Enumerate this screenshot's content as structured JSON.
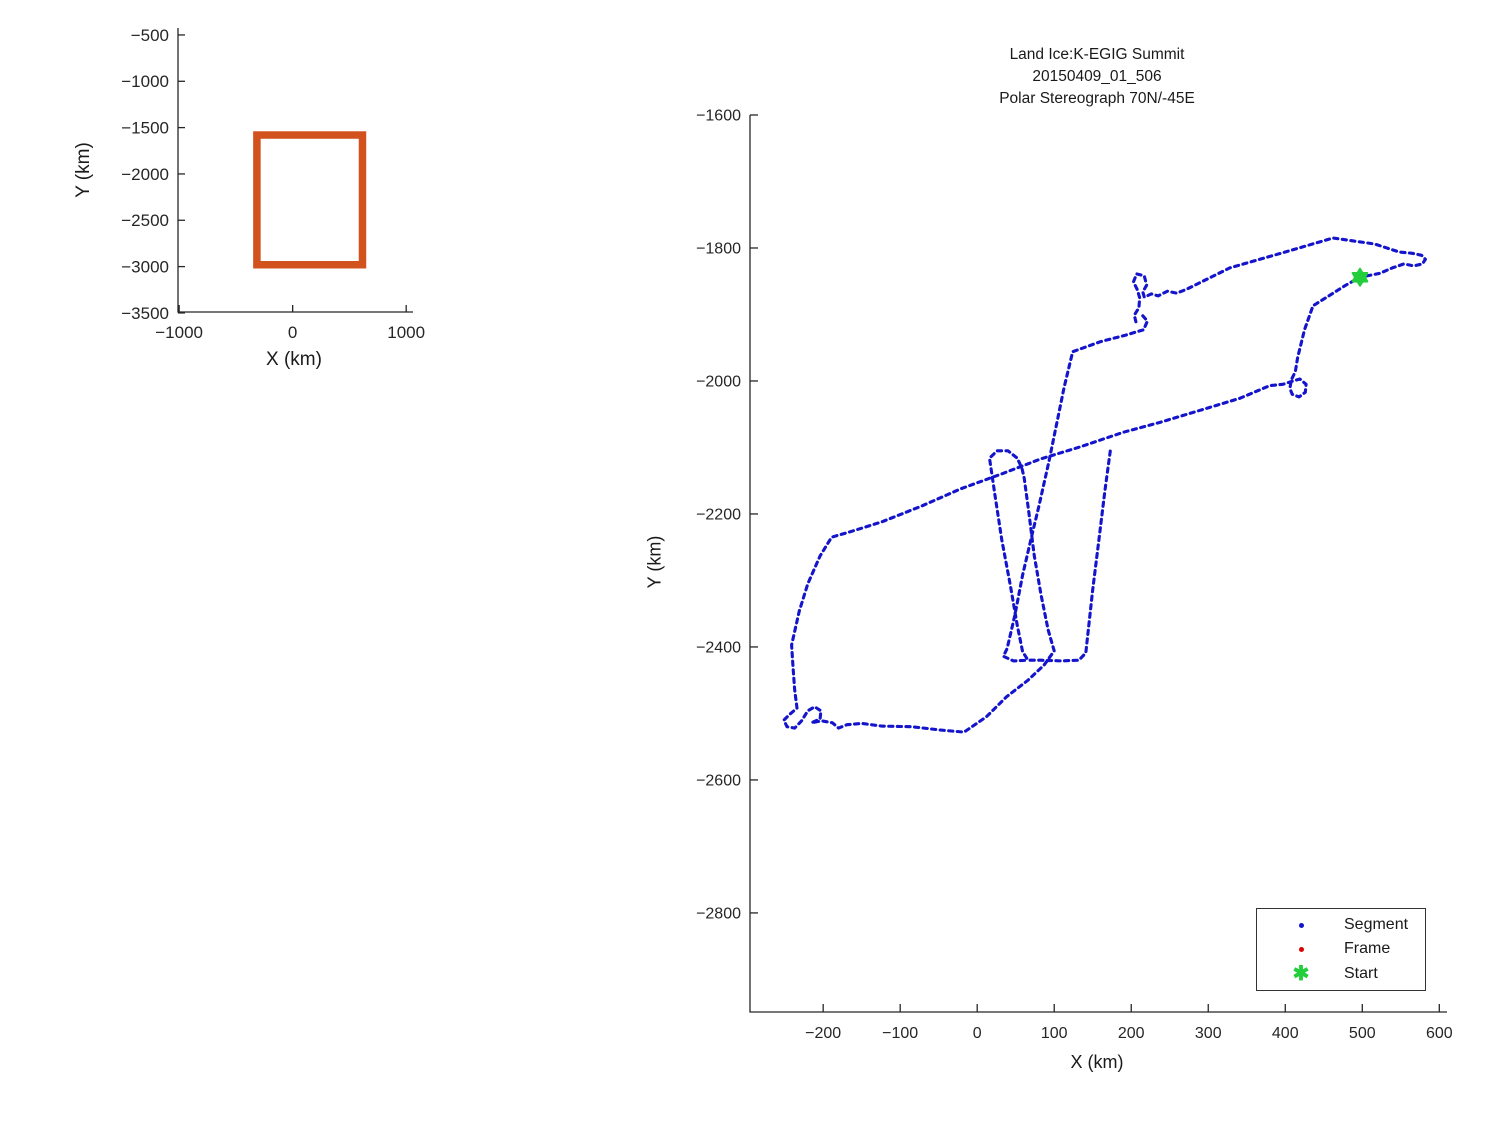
{
  "figure": {
    "background": "#ffffff",
    "axis_color": "#262626"
  },
  "legend": {
    "items": [
      {
        "label": "Segment",
        "marker": "dot",
        "color": "#1414CC"
      },
      {
        "label": "Frame",
        "marker": "dot",
        "color": "#DD0000"
      },
      {
        "label": "Start",
        "marker": "hexagram",
        "color": "#22CE3C"
      }
    ]
  },
  "chart_data": [
    {
      "type": "line",
      "role": "overview-map",
      "title": [],
      "xlabel": "X (km)",
      "ylabel": "Y (km)",
      "x_ticks": [
        -1000,
        0,
        1000
      ],
      "y_ticks": [
        -500,
        -1000,
        -1500,
        -2000,
        -2500,
        -3000,
        -3500
      ],
      "x_range": [
        -1010,
        1060
      ],
      "y_range": [
        -425,
        -3490
      ],
      "grid": false,
      "bbox_rect": {
        "x0": -315,
        "x1": 615,
        "y0": -1580,
        "y1": -2980,
        "color": "#D2521E",
        "line_width": 7.5
      }
    },
    {
      "type": "line",
      "role": "flight-track",
      "title": [
        "Land Ice:K-EGIG Summit",
        "20150409_01_506",
        "Polar Stereograph 70N/-45E"
      ],
      "xlabel": "X (km)",
      "ylabel": "Y (km)",
      "x_ticks": [
        -200,
        -100,
        0,
        100,
        200,
        300,
        400,
        500,
        600
      ],
      "y_ticks": [
        -1600,
        -1800,
        -2000,
        -2200,
        -2400,
        -2600,
        -2800
      ],
      "x_range": [
        -295,
        610
      ],
      "y_range": [
        -1600,
        -2949
      ],
      "grid": false,
      "track_color": "#1414CC",
      "line_style": "dotted",
      "series": [
        {
          "name": "segment-track-main",
          "points": [
            [
              206,
              -1911
            ],
            [
              204,
              -1901
            ],
            [
              210,
              -1890
            ],
            [
              211,
              -1875
            ],
            [
              208,
              -1863
            ],
            [
              203,
              -1851
            ],
            [
              207,
              -1839
            ],
            [
              217,
              -1842
            ],
            [
              220,
              -1856
            ],
            [
              215,
              -1866
            ],
            [
              217,
              -1874
            ],
            [
              226,
              -1869
            ],
            [
              235,
              -1872
            ],
            [
              247,
              -1865
            ],
            [
              259,
              -1868
            ],
            [
              272,
              -1862
            ],
            [
              328,
              -1830
            ],
            [
              400,
              -1806
            ],
            [
              462,
              -1785
            ],
            [
              516,
              -1794
            ],
            [
              548,
              -1806
            ],
            [
              565,
              -1808
            ],
            [
              577,
              -1811
            ],
            [
              582,
              -1817
            ],
            [
              578,
              -1824
            ],
            [
              567,
              -1827
            ],
            [
              554,
              -1824
            ],
            [
              539,
              -1830
            ],
            [
              523,
              -1838
            ],
            [
              497,
              -1844
            ],
            [
              477,
              -1857
            ],
            [
              458,
              -1871
            ],
            [
              436,
              -1887
            ],
            [
              425,
              -1923
            ],
            [
              416,
              -1965
            ],
            [
              413,
              -1986
            ],
            [
              408,
              -1998
            ],
            [
              406,
              -2011
            ],
            [
              409,
              -2020
            ],
            [
              418,
              -2024
            ],
            [
              426,
              -2017
            ],
            [
              427,
              -2005
            ],
            [
              419,
              -1997
            ],
            [
              410,
              -2000
            ],
            [
              397,
              -2005
            ],
            [
              380,
              -2007
            ],
            [
              341,
              -2026
            ],
            [
              290,
              -2044
            ],
            [
              238,
              -2062
            ],
            [
              190,
              -2077
            ],
            [
              134,
              -2099
            ],
            [
              83,
              -2117
            ],
            [
              31,
              -2140
            ],
            [
              -21,
              -2162
            ],
            [
              -72,
              -2188
            ],
            [
              -124,
              -2212
            ],
            [
              -163,
              -2226
            ],
            [
              -189,
              -2235
            ],
            [
              -204,
              -2263
            ],
            [
              -220,
              -2305
            ],
            [
              -231,
              -2346
            ],
            [
              -241,
              -2397
            ],
            [
              -239,
              -2432
            ],
            [
              -237,
              -2465
            ],
            [
              -234,
              -2492
            ],
            [
              -243,
              -2501
            ],
            [
              -251,
              -2510
            ],
            [
              -247,
              -2520
            ],
            [
              -237,
              -2522
            ],
            [
              -228,
              -2511
            ],
            [
              -220,
              -2496
            ],
            [
              -211,
              -2490
            ],
            [
              -203,
              -2496
            ],
            [
              -204,
              -2508
            ],
            [
              -215,
              -2514
            ],
            [
              -202,
              -2511
            ],
            [
              -188,
              -2514
            ],
            [
              -180,
              -2522
            ],
            [
              -169,
              -2517
            ],
            [
              -150,
              -2515
            ],
            [
              -124,
              -2519
            ],
            [
              -85,
              -2520
            ],
            [
              -47,
              -2525
            ],
            [
              -17,
              -2528
            ],
            [
              12,
              -2505
            ],
            [
              38,
              -2475
            ],
            [
              66,
              -2450
            ],
            [
              87,
              -2427
            ],
            [
              100,
              -2406
            ],
            [
              92,
              -2374
            ],
            [
              83,
              -2322
            ],
            [
              74,
              -2262
            ],
            [
              67,
              -2197
            ],
            [
              61,
              -2146
            ],
            [
              58,
              -2131
            ],
            [
              52,
              -2116
            ],
            [
              40,
              -2105
            ],
            [
              26,
              -2105
            ],
            [
              16,
              -2116
            ],
            [
              23,
              -2171
            ],
            [
              32,
              -2239
            ],
            [
              43,
              -2307
            ],
            [
              52,
              -2367
            ],
            [
              59,
              -2407
            ],
            [
              66,
              -2420
            ],
            [
              83,
              -2420
            ],
            [
              109,
              -2421
            ],
            [
              132,
              -2420
            ],
            [
              141,
              -2409
            ],
            [
              150,
              -2314
            ],
            [
              158,
              -2239
            ],
            [
              166,
              -2164
            ],
            [
              173,
              -2104
            ]
          ]
        },
        {
          "name": "segment-track-ramp",
          "points": [
            [
              215,
              -1902
            ],
            [
              221,
              -1910
            ],
            [
              216,
              -1923
            ],
            [
              207,
              -1926
            ],
            [
              193,
              -1931
            ],
            [
              160,
              -1941
            ],
            [
              124,
              -1956
            ],
            [
              113,
              -2009
            ],
            [
              93,
              -2122
            ],
            [
              80,
              -2189
            ],
            [
              71,
              -2232
            ],
            [
              59,
              -2292
            ],
            [
              49,
              -2352
            ],
            [
              39,
              -2402
            ],
            [
              34,
              -2414
            ],
            [
              47,
              -2421
            ],
            [
              66,
              -2420
            ]
          ]
        }
      ],
      "start_point": {
        "x": 497,
        "y": -1844,
        "color": "#22CE3C"
      }
    }
  ]
}
